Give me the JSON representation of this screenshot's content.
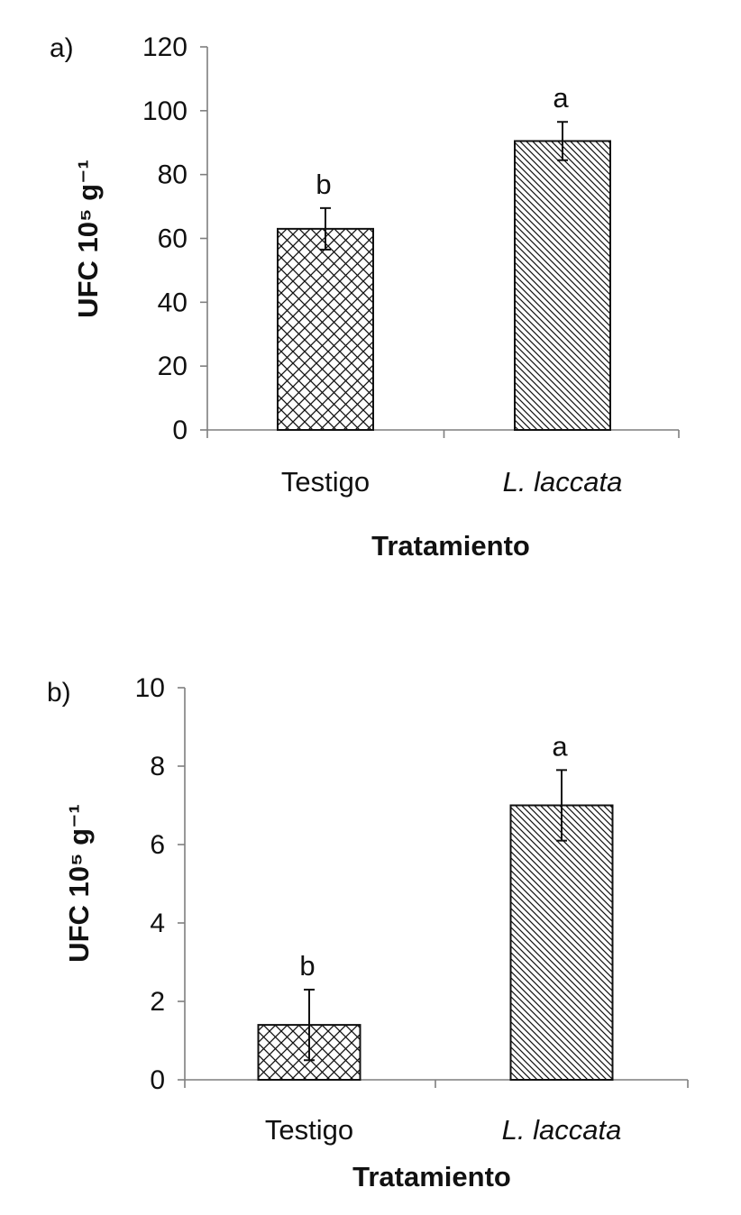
{
  "chart_data": [
    {
      "panel_label": "a)",
      "type": "bar",
      "categories": [
        "Testigo",
        "L. laccata"
      ],
      "values": [
        63,
        90.5
      ],
      "errors": [
        6.5,
        6
      ],
      "significance": [
        "b",
        "a"
      ],
      "patterns": [
        "crosshatch",
        "diagonal"
      ],
      "xlabel": "Tratamiento",
      "ylabel": "UFC 10⁵ g⁻¹",
      "ylim": [
        0,
        120
      ],
      "yticks": [
        0,
        20,
        40,
        60,
        80,
        100,
        120
      ],
      "grid": false
    },
    {
      "panel_label": "b)",
      "type": "bar",
      "categories": [
        "Testigo",
        "L. laccata"
      ],
      "values": [
        1.4,
        7.0
      ],
      "errors": [
        0.9,
        0.9
      ],
      "significance": [
        "b",
        "a"
      ],
      "patterns": [
        "crosshatch",
        "diagonal"
      ],
      "xlabel": "Tratamiento",
      "ylabel": "UFC 10⁵ g⁻¹",
      "ylim": [
        0,
        10
      ],
      "yticks": [
        0,
        2,
        4,
        6,
        8,
        10
      ],
      "grid": false
    }
  ]
}
